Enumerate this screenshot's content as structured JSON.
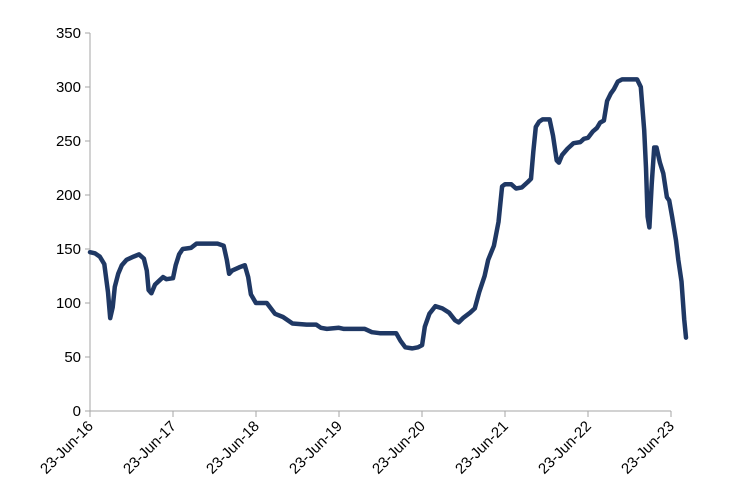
{
  "chart_data": {
    "type": "line",
    "title": "",
    "xlabel": "",
    "ylabel": "",
    "ylim": [
      0,
      350
    ],
    "yticks": [
      0,
      50,
      100,
      150,
      200,
      250,
      300,
      350
    ],
    "xlim": [
      "2016-06-23",
      "2023-06-23"
    ],
    "xticks": [
      "23-Jun-16",
      "23-Jun-17",
      "23-Jun-18",
      "23-Jun-19",
      "23-Jun-20",
      "23-Jun-21",
      "23-Jun-22",
      "23-Jun-23"
    ],
    "grid": false,
    "legend": "none",
    "series": [
      {
        "color": "#1f3864",
        "points": [
          [
            "2016-06-23",
            147
          ],
          [
            "2016-07-15",
            146
          ],
          [
            "2016-08-05",
            143
          ],
          [
            "2016-08-25",
            136
          ],
          [
            "2016-09-10",
            110
          ],
          [
            "2016-09-20",
            86
          ],
          [
            "2016-10-01",
            96
          ],
          [
            "2016-10-10",
            115
          ],
          [
            "2016-10-25",
            127
          ],
          [
            "2016-11-10",
            135
          ],
          [
            "2016-12-01",
            140
          ],
          [
            "2017-01-01",
            143
          ],
          [
            "2017-01-25",
            145
          ],
          [
            "2017-02-15",
            141
          ],
          [
            "2017-02-28",
            130
          ],
          [
            "2017-03-08",
            112
          ],
          [
            "2017-03-20",
            109
          ],
          [
            "2017-04-05",
            117
          ],
          [
            "2017-04-25",
            121
          ],
          [
            "2017-05-10",
            124
          ],
          [
            "2017-05-25",
            122
          ],
          [
            "2017-06-23",
            123
          ],
          [
            "2017-07-05",
            135
          ],
          [
            "2017-07-20",
            145
          ],
          [
            "2017-08-05",
            150
          ],
          [
            "2017-09-10",
            151
          ],
          [
            "2017-10-05",
            155
          ],
          [
            "2017-11-15",
            155
          ],
          [
            "2018-01-05",
            155
          ],
          [
            "2018-02-01",
            153
          ],
          [
            "2018-02-15",
            140
          ],
          [
            "2018-02-25",
            127
          ],
          [
            "2018-03-10",
            130
          ],
          [
            "2018-04-10",
            133
          ],
          [
            "2018-05-05",
            135
          ],
          [
            "2018-05-20",
            124
          ],
          [
            "2018-06-01",
            108
          ],
          [
            "2018-06-23",
            100
          ],
          [
            "2018-08-10",
            100
          ],
          [
            "2018-09-15",
            90
          ],
          [
            "2018-10-20",
            87
          ],
          [
            "2018-12-01",
            81
          ],
          [
            "2019-02-01",
            80
          ],
          [
            "2019-03-15",
            80
          ],
          [
            "2019-04-05",
            77
          ],
          [
            "2019-05-01",
            76
          ],
          [
            "2019-06-23",
            77
          ],
          [
            "2019-07-15",
            76
          ],
          [
            "2019-09-01",
            76
          ],
          [
            "2019-10-15",
            76
          ],
          [
            "2019-11-15",
            73
          ],
          [
            "2019-12-20",
            72
          ],
          [
            "2020-02-01",
            72
          ],
          [
            "2020-03-01",
            72
          ],
          [
            "2020-03-20",
            65
          ],
          [
            "2020-04-10",
            59
          ],
          [
            "2020-05-10",
            58
          ],
          [
            "2020-06-05",
            59
          ],
          [
            "2020-06-23",
            61
          ],
          [
            "2020-07-05",
            78
          ],
          [
            "2020-07-25",
            90
          ],
          [
            "2020-08-20",
            97
          ],
          [
            "2020-09-20",
            95
          ],
          [
            "2020-10-20",
            91
          ],
          [
            "2020-11-15",
            84
          ],
          [
            "2020-12-01",
            82
          ],
          [
            "2020-12-20",
            86
          ],
          [
            "2021-01-20",
            91
          ],
          [
            "2021-02-10",
            95
          ],
          [
            "2021-03-01",
            110
          ],
          [
            "2021-03-25",
            125
          ],
          [
            "2021-04-10",
            140
          ],
          [
            "2021-05-05",
            153
          ],
          [
            "2021-05-25",
            175
          ],
          [
            "2021-06-10",
            208
          ],
          [
            "2021-06-23",
            210
          ],
          [
            "2021-07-20",
            210
          ],
          [
            "2021-08-10",
            206
          ],
          [
            "2021-09-05",
            207
          ],
          [
            "2021-10-01",
            212
          ],
          [
            "2021-10-15",
            215
          ],
          [
            "2021-10-25",
            240
          ],
          [
            "2021-11-05",
            263
          ],
          [
            "2021-11-20",
            268
          ],
          [
            "2021-12-05",
            270
          ],
          [
            "2022-01-05",
            270
          ],
          [
            "2022-01-20",
            255
          ],
          [
            "2022-02-05",
            232
          ],
          [
            "2022-02-15",
            230
          ],
          [
            "2022-03-01",
            237
          ],
          [
            "2022-03-25",
            243
          ],
          [
            "2022-04-20",
            248
          ],
          [
            "2022-05-20",
            249
          ],
          [
            "2022-06-05",
            252
          ],
          [
            "2022-06-23",
            253
          ],
          [
            "2022-07-15",
            259
          ],
          [
            "2022-08-01",
            262
          ],
          [
            "2022-08-15",
            267
          ],
          [
            "2022-09-01",
            269
          ],
          [
            "2022-09-15",
            287
          ],
          [
            "2022-10-01",
            294
          ],
          [
            "2022-10-15",
            298
          ],
          [
            "2022-11-01",
            305
          ],
          [
            "2022-11-20",
            307
          ],
          [
            "2023-01-25",
            307
          ],
          [
            "2023-02-10",
            300
          ],
          [
            "2023-02-25",
            260
          ],
          [
            "2023-03-05",
            225
          ],
          [
            "2023-03-12",
            180
          ],
          [
            "2023-03-20",
            170
          ],
          [
            "2023-03-30",
            210
          ],
          [
            "2023-04-10",
            244
          ],
          [
            "2023-04-20",
            244
          ],
          [
            "2023-05-05",
            230
          ],
          [
            "2023-05-20",
            220
          ],
          [
            "2023-06-05",
            198
          ],
          [
            "2023-06-15",
            195
          ],
          [
            "2023-06-28",
            180
          ],
          [
            "2023-07-15",
            158
          ],
          [
            "2023-07-25",
            140
          ],
          [
            "2023-08-08",
            120
          ],
          [
            "2023-08-20",
            85
          ],
          [
            "2023-08-28",
            68
          ]
        ]
      }
    ]
  }
}
